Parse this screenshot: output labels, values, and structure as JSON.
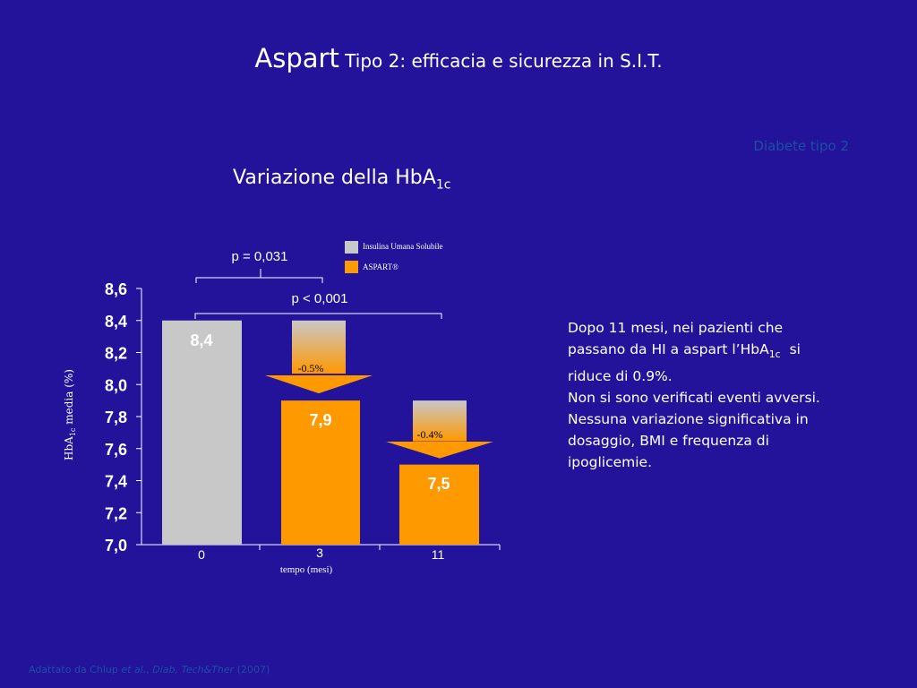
{
  "slide": {
    "title_main": "Aspart",
    "title_rest": "Tipo 2: efficacia e sicurezza in S.I.T.",
    "tag": "Diabete tipo 2",
    "chart_title_main": "Variazione della HbA",
    "chart_title_sub": "1c",
    "ylabel_main": "HbA",
    "ylabel_sub": "1c",
    "ylabel_rest": "media (%)",
    "side_line1": "Dopo 11 mesi, nei pazienti che",
    "side_line2_pre": "passano da HI a aspart l’HbA",
    "side_line2_sub": "1c",
    "side_line2_post": "si",
    "side_line3": "riduce di 0.9%.",
    "side_line4": "Non si sono verificati eventi avversi.",
    "side_line5": "Nessuna variazione significativa in",
    "side_line6": "dosaggio, BMI e frequenza di",
    "side_line7": "ipoglicemie.",
    "footer_pre": "Adattato da Chlup ",
    "footer_etal": "et al.",
    "footer_mid": ", ",
    "footer_journal": "Diab, Tech&Ther",
    "footer_year": " (2007)"
  },
  "chart_data": {
    "type": "bar",
    "xlabel": "tempo (mesi)",
    "ylim": [
      7.0,
      8.6
    ],
    "y_ticks": [
      "7,0",
      "7,2",
      "7,4",
      "7,6",
      "7,8",
      "8,0",
      "8,2",
      "8,4",
      "8,6"
    ],
    "categories": [
      "0",
      "3",
      "11"
    ],
    "series": [
      {
        "name": "Insulina Umana Solubile",
        "color": "#c8c8c8",
        "values": [
          8.4,
          8.4,
          7.9
        ]
      },
      {
        "name": "ASPART®",
        "color": "#ff9900",
        "values": [
          null,
          7.9,
          7.5
        ]
      }
    ],
    "data_labels": [
      "8,4",
      "7,9",
      "7,5"
    ],
    "changes": [
      "-0.5%",
      "-0.4%"
    ],
    "p_values": [
      "p = 0,031",
      "p < 0,001"
    ]
  }
}
